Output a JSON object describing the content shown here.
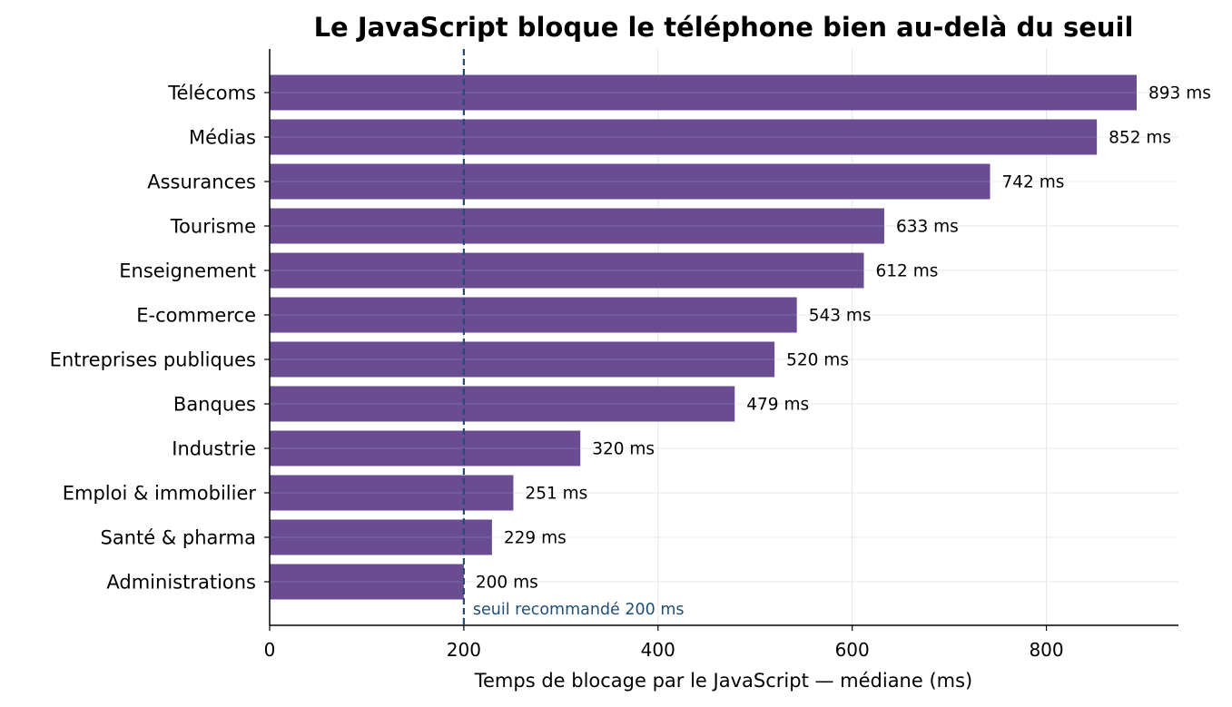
{
  "chart_data": {
    "type": "bar",
    "orientation": "horizontal",
    "title": "Le JavaScript bloque le téléphone bien au-delà du seuil",
    "xlabel": "Temps de blocage par le JavaScript — médiane (ms)",
    "ylabel": "",
    "xlim": [
      0,
      936
    ],
    "xticks": [
      0,
      200,
      400,
      600,
      800
    ],
    "grid": true,
    "value_suffix": " ms",
    "categories": [
      "Télécoms",
      "Médias",
      "Assurances",
      "Tourisme",
      "Enseignement",
      "E-commerce",
      "Entreprises publiques",
      "Banques",
      "Industrie",
      "Emploi & immobilier",
      "Santé & pharma",
      "Administrations"
    ],
    "values": [
      893,
      852,
      742,
      633,
      612,
      543,
      520,
      479,
      320,
      251,
      229,
      200
    ],
    "bar_color": "#6a4c93",
    "threshold": {
      "value": 200,
      "label": "seuil recommandé 200 ms",
      "color": "#1f4e79"
    }
  }
}
